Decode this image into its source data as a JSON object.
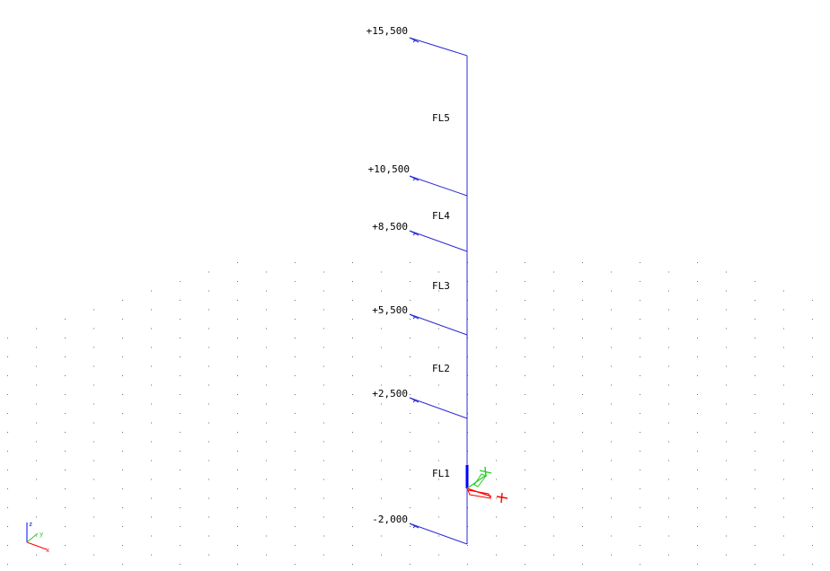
{
  "colors": {
    "level_line": "#2b2bd6",
    "label": "#000000",
    "grid": "#6e6e6e",
    "axis_x": "#ff0000",
    "axis_y": "#22cc22",
    "axis_z": "#0000ff"
  },
  "levels": [
    {
      "label": "+15,500"
    },
    {
      "label": "+10,500"
    },
    {
      "label": "+8,500"
    },
    {
      "label": "+5,500"
    },
    {
      "label": "+2,500"
    },
    {
      "label": "-2,000"
    }
  ],
  "floors": [
    "FL5",
    "FL4",
    "FL3",
    "FL2",
    "FL1"
  ],
  "axes_indicator": {
    "x": "x",
    "y": "y",
    "z": "z"
  }
}
